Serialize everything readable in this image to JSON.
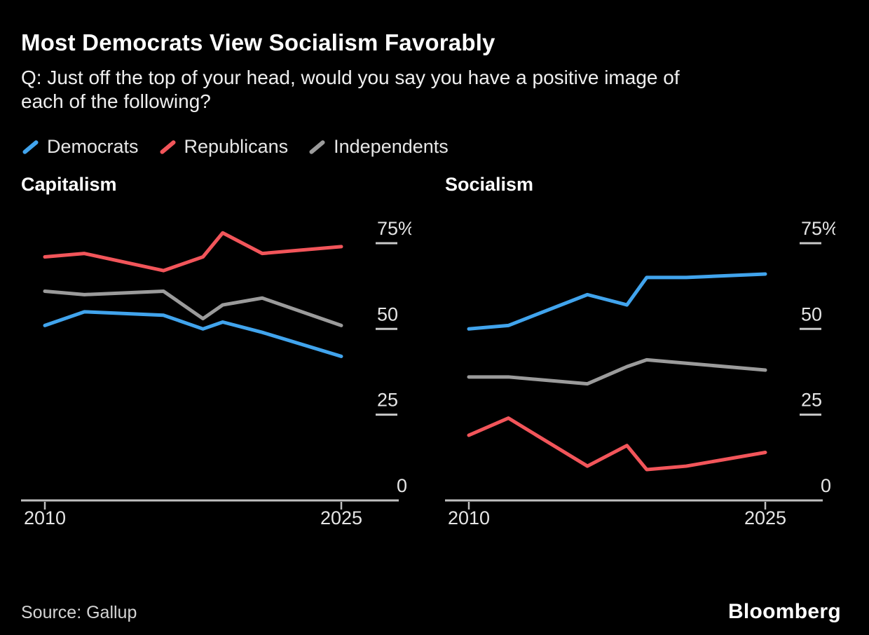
{
  "header": {
    "title": "Most Democrats View Socialism Favorably",
    "subtitle": "Q: Just off the top of your head, would you say you have a positive image of\neach of the following?"
  },
  "legend": [
    {
      "label": "Democrats",
      "color": "#41A4ED"
    },
    {
      "label": "Republicans",
      "color": "#F2555A"
    },
    {
      "label": "Independents",
      "color": "#9B9B9B"
    }
  ],
  "colors": {
    "background": "#000000",
    "title_text": "#FFFFFF",
    "axis_line": "#BFBFBF",
    "tick_dash": "#C9C9C9",
    "axis_label": "#E5E5E5"
  },
  "chart_data": [
    {
      "type": "line",
      "title": "Capitalism",
      "x": [
        2010,
        2012,
        2016,
        2018,
        2019,
        2021,
        2025
      ],
      "series": [
        {
          "name": "Democrats",
          "color": "#41A4ED",
          "values": [
            51,
            55,
            54,
            50,
            52,
            49,
            42
          ]
        },
        {
          "name": "Republicans",
          "color": "#F2555A",
          "values": [
            71,
            72,
            67,
            71,
            78,
            72,
            74
          ]
        },
        {
          "name": "Independents",
          "color": "#9B9B9B",
          "values": [
            61,
            60,
            61,
            53,
            57,
            59,
            51
          ]
        }
      ],
      "xlim": [
        2010,
        2025
      ],
      "ylim": [
        0,
        78
      ],
      "yticks": [
        75,
        50,
        25,
        0
      ],
      "ytick_labels": [
        "75%",
        "50",
        "25",
        "0"
      ],
      "xticks": [
        2010,
        2025
      ],
      "xtick_labels": [
        "2010",
        "2025"
      ],
      "grid": "off",
      "legend_position": "top-shared"
    },
    {
      "type": "line",
      "title": "Socialism",
      "x": [
        2010,
        2012,
        2016,
        2018,
        2019,
        2021,
        2025
      ],
      "series": [
        {
          "name": "Democrats",
          "color": "#41A4ED",
          "values": [
            50,
            51,
            60,
            57,
            65,
            65,
            66
          ]
        },
        {
          "name": "Republicans",
          "color": "#F2555A",
          "values": [
            19,
            24,
            10,
            16,
            9,
            10,
            14
          ]
        },
        {
          "name": "Independents",
          "color": "#9B9B9B",
          "values": [
            36,
            36,
            34,
            39,
            41,
            40,
            38
          ]
        }
      ],
      "xlim": [
        2010,
        2025
      ],
      "ylim": [
        0,
        78
      ],
      "yticks": [
        75,
        50,
        25,
        0
      ],
      "ytick_labels": [
        "75%",
        "50",
        "25",
        "0"
      ],
      "xticks": [
        2010,
        2025
      ],
      "xtick_labels": [
        "2010",
        "2025"
      ],
      "grid": "off",
      "legend_position": "top-shared"
    }
  ],
  "footer": {
    "source": "Source: Gallup",
    "brand": "Bloomberg"
  }
}
